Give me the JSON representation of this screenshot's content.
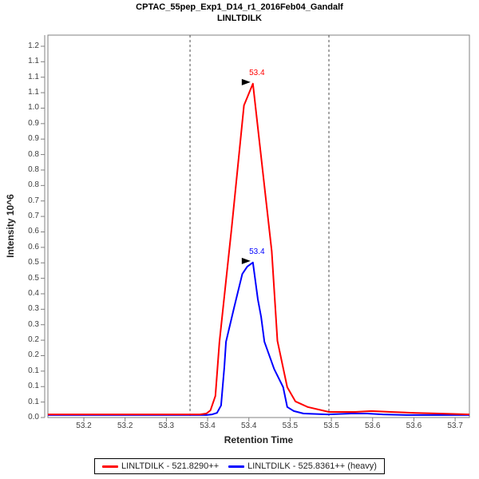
{
  "title": {
    "line1": "CPTAC_55pep_Exp1_D14_r1_2016Feb04_Gandalf",
    "line2": "LINLTDILK"
  },
  "axes": {
    "x_title": "Retention Time",
    "y_title": "Intensity 10^6"
  },
  "colors": {
    "trace_light": "#ff0000",
    "trace_heavy": "#0000ff",
    "frame": "#808080",
    "tick_label": "#404040",
    "boundary": "#4d4d4d",
    "annotation_arrow": "#000000",
    "title": "#000000"
  },
  "legend": {
    "items": [
      {
        "label": "LINLTDILK - 521.8290++",
        "color": "#ff0000"
      },
      {
        "label": "LINLTDILK - 525.8361++ (heavy)",
        "color": "#0000ff"
      }
    ]
  },
  "chart_data": {
    "type": "line",
    "title": "CPTAC_55pep_Exp1_D14_r1_2016Feb04_Gandalf / LINLTDILK",
    "xlabel": "Retention Time",
    "ylabel": "Intensity 10^6",
    "x_range": [
      53.148,
      53.664
    ],
    "y_range": [
      0,
      1.236
    ],
    "grid": false,
    "legend_position": "bottom",
    "peak_boundaries_rt": [
      53.322,
      53.492
    ],
    "x_ticks": [
      {
        "label": "53.2",
        "value": 53.192
      },
      {
        "label": "53.2",
        "value": 53.2425
      },
      {
        "label": "53.3",
        "value": 53.293
      },
      {
        "label": "53.4",
        "value": 53.3435
      },
      {
        "label": "53.4",
        "value": 53.394
      },
      {
        "label": "53.5",
        "value": 53.4445
      },
      {
        "label": "53.5",
        "value": 53.495
      },
      {
        "label": "53.6",
        "value": 53.5455
      },
      {
        "label": "53.6",
        "value": 53.596
      },
      {
        "label": "53.7",
        "value": 53.6465
      }
    ],
    "y_ticks": [
      {
        "label": "1.2",
        "value": 1.2
      },
      {
        "label": "1.1",
        "value": 1.15
      },
      {
        "label": "1.1",
        "value": 1.1
      },
      {
        "label": "1.1",
        "value": 1.05
      },
      {
        "label": "1.0",
        "value": 1.0
      },
      {
        "label": "0.9",
        "value": 0.95
      },
      {
        "label": "0.9",
        "value": 0.9
      },
      {
        "label": "0.8",
        "value": 0.85
      },
      {
        "label": "0.8",
        "value": 0.8
      },
      {
        "label": "0.8",
        "value": 0.75
      },
      {
        "label": "0.7",
        "value": 0.7
      },
      {
        "label": "0.7",
        "value": 0.65
      },
      {
        "label": "0.6",
        "value": 0.6
      },
      {
        "label": "0.6",
        "value": 0.55
      },
      {
        "label": "0.5",
        "value": 0.5
      },
      {
        "label": "0.5",
        "value": 0.45
      },
      {
        "label": "0.4",
        "value": 0.4
      },
      {
        "label": "0.3",
        "value": 0.35
      },
      {
        "label": "0.3",
        "value": 0.3
      },
      {
        "label": "0.2",
        "value": 0.25
      },
      {
        "label": "0.2",
        "value": 0.2
      },
      {
        "label": "0.1",
        "value": 0.15
      },
      {
        "label": "0.1",
        "value": 0.1
      },
      {
        "label": "0.1",
        "value": 0.05
      },
      {
        "label": "0.0",
        "value": 0.0
      }
    ],
    "series": [
      {
        "name": "LINLTDILK - 521.8290++",
        "color": "#ff0000",
        "annotation": {
          "label": "53.4",
          "rt": 53.399,
          "intensity": 1.079
        },
        "points": [
          [
            53.148,
            0.01
          ],
          [
            53.334,
            0.01
          ],
          [
            53.342,
            0.013
          ],
          [
            53.347,
            0.023
          ],
          [
            53.353,
            0.07
          ],
          [
            53.358,
            0.245
          ],
          [
            53.373,
            0.614
          ],
          [
            53.388,
            1.009
          ],
          [
            53.399,
            1.079
          ],
          [
            53.422,
            0.537
          ],
          [
            53.429,
            0.248
          ],
          [
            53.441,
            0.098
          ],
          [
            53.451,
            0.052
          ],
          [
            53.466,
            0.034
          ],
          [
            53.492,
            0.018
          ],
          [
            53.524,
            0.018
          ],
          [
            53.544,
            0.021
          ],
          [
            53.568,
            0.018
          ],
          [
            53.598,
            0.015
          ],
          [
            53.627,
            0.013
          ],
          [
            53.664,
            0.01
          ]
        ]
      },
      {
        "name": "LINLTDILK - 525.8361++ (heavy)",
        "color": "#0000ff",
        "annotation": {
          "label": "53.4",
          "rt": 53.399,
          "intensity": 0.501
        },
        "points": [
          [
            53.148,
            0.008
          ],
          [
            53.342,
            0.008
          ],
          [
            53.349,
            0.01
          ],
          [
            53.355,
            0.015
          ],
          [
            53.36,
            0.039
          ],
          [
            53.364,
            0.163
          ],
          [
            53.366,
            0.245
          ],
          [
            53.376,
            0.356
          ],
          [
            53.386,
            0.464
          ],
          [
            53.392,
            0.488
          ],
          [
            53.399,
            0.501
          ],
          [
            53.405,
            0.382
          ],
          [
            53.409,
            0.325
          ],
          [
            53.413,
            0.245
          ],
          [
            53.425,
            0.157
          ],
          [
            53.436,
            0.098
          ],
          [
            53.441,
            0.034
          ],
          [
            53.449,
            0.021
          ],
          [
            53.461,
            0.013
          ],
          [
            53.49,
            0.01
          ],
          [
            53.519,
            0.013
          ],
          [
            53.539,
            0.013
          ],
          [
            53.558,
            0.01
          ],
          [
            53.588,
            0.008
          ],
          [
            53.664,
            0.008
          ]
        ]
      }
    ]
  }
}
